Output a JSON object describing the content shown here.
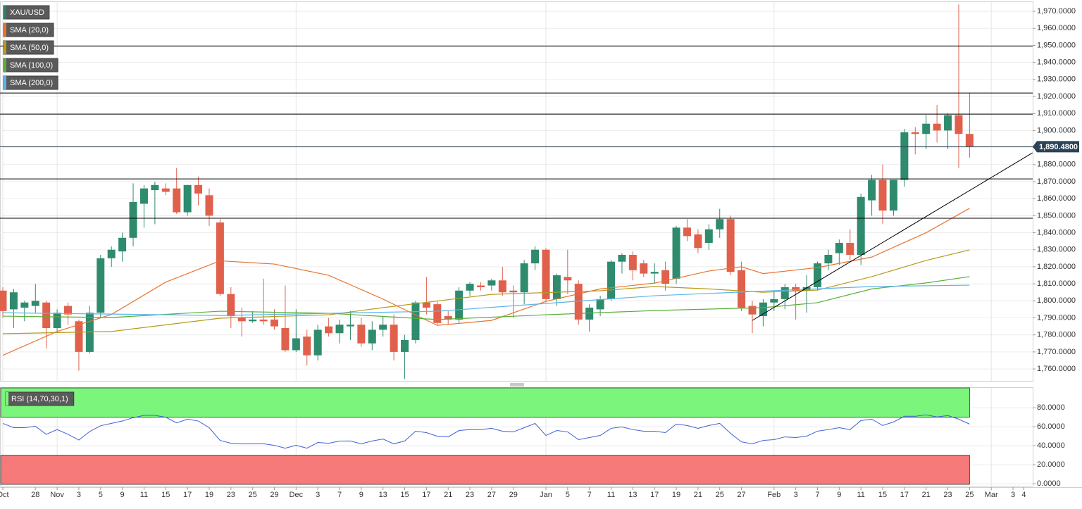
{
  "chart_data": [
    {
      "type": "candlestick",
      "legend": "top-left",
      "grid": true,
      "categories": [
        "Oct",
        null,
        null,
        "28",
        null,
        "Nov",
        null,
        "3",
        null,
        "5",
        null,
        "9",
        null,
        "11",
        null,
        "15",
        null,
        "17",
        null,
        "19",
        null,
        "23",
        null,
        "25",
        null,
        "29",
        null,
        "Dec",
        null,
        "3",
        null,
        "7",
        null,
        "9",
        null,
        "13",
        null,
        "15",
        null,
        "17",
        null,
        "21",
        null,
        "23",
        null,
        "27",
        null,
        "29",
        null,
        null,
        "Jan",
        null,
        "5",
        null,
        "7",
        null,
        "11",
        null,
        "13",
        null,
        "17",
        null,
        "19",
        null,
        "21",
        null,
        "25",
        null,
        "27",
        null,
        null,
        "Feb",
        null,
        "3",
        null,
        "7",
        null,
        "9",
        null,
        "11",
        null,
        "15",
        null,
        "17",
        null,
        "21",
        null,
        "23",
        null,
        "25",
        null,
        "Mar",
        null,
        "3",
        "4"
      ],
      "series": [
        {
          "name": "XAU/USD",
          "color": "#2f7e67",
          "up_color": "#2e8b6e",
          "down_color": "#e0604c",
          "open": [
            1806,
            1795,
            1796,
            1797,
            1799,
            1784,
            1797,
            1788,
            1770,
            1793,
            1825,
            1829,
            1837,
            1857,
            1865,
            1866,
            1866,
            1852,
            1868,
            1862,
            1846,
            1804,
            1790,
            1788,
            1789,
            1789,
            1784,
            1771,
            1779,
            1768,
            1785,
            1781,
            1785,
            1786,
            1775,
            1783,
            1786,
            1770,
            1777,
            1799,
            1798,
            1791,
            1789,
            1806,
            1809,
            1809,
            1812,
            1806,
            1805,
            1822,
            1830,
            1801,
            1814,
            1810,
            1789,
            1795,
            1801,
            1823,
            1827,
            1822,
            1816,
            1818,
            1813,
            1843,
            1839,
            1834,
            1842,
            1848,
            1818,
            1797,
            1791,
            1799,
            1801,
            1808,
            1806,
            1808,
            1822,
            1828,
            1834,
            1827,
            1859,
            1871,
            1853,
            1871,
            1899,
            1898,
            1904,
            1900,
            1909,
            1898,
            null,
            null,
            null,
            null,
            null
          ],
          "high": [
            1808,
            1807,
            1800,
            1810,
            1800,
            1795,
            1799,
            1789,
            1797,
            1827,
            1832,
            1840,
            1869,
            1868,
            1870,
            1869,
            1878,
            1868,
            1873,
            1866,
            1848,
            1808,
            1796,
            1794,
            1813,
            1795,
            1809,
            1795,
            1783,
            1786,
            1790,
            1789,
            1794,
            1790,
            1788,
            1791,
            1792,
            1780,
            1800,
            1814,
            1800,
            1794,
            1808,
            1811,
            1811,
            1813,
            1820,
            1809,
            1824,
            1832,
            1831,
            1816,
            1830,
            1812,
            1798,
            1803,
            1824,
            1828,
            1829,
            1824,
            1822,
            1823,
            1844,
            1848,
            1842,
            1845,
            1854,
            1850,
            1823,
            1800,
            1801,
            1806,
            1810,
            1810,
            1815,
            1823,
            1830,
            1836,
            1842,
            1863,
            1874,
            1880,
            1871,
            1901,
            1902,
            1909,
            1915,
            1910,
            1974,
            1922,
            null,
            null,
            null,
            null,
            null
          ],
          "low": [
            1790,
            1784,
            1788,
            1793,
            1772,
            1782,
            1786,
            1759,
            1769,
            1790,
            1820,
            1823,
            1832,
            1843,
            1845,
            1862,
            1851,
            1850,
            1856,
            1844,
            1803,
            1784,
            1779,
            1787,
            1786,
            1783,
            1770,
            1770,
            1762,
            1765,
            1779,
            1775,
            1777,
            1773,
            1771,
            1779,
            1765,
            1754,
            1775,
            1792,
            1786,
            1786,
            1787,
            1803,
            1806,
            1806,
            1803,
            1790,
            1798,
            1818,
            1799,
            1797,
            1804,
            1786,
            1782,
            1791,
            1800,
            1816,
            1812,
            1814,
            1810,
            1806,
            1810,
            1835,
            1828,
            1830,
            1837,
            1815,
            1794,
            1781,
            1785,
            1794,
            1795,
            1789,
            1793,
            1806,
            1818,
            1821,
            1824,
            1821,
            1850,
            1845,
            1850,
            1867,
            1886,
            1889,
            1893,
            1889,
            1878,
            1884,
            null,
            null,
            null,
            null,
            null
          ],
          "close": [
            1794,
            1805,
            1799,
            1800,
            1784,
            1793,
            1792,
            1770,
            1793,
            1825,
            1830,
            1837,
            1858,
            1866,
            1868,
            1864,
            1852,
            1868,
            1863,
            1850,
            1804,
            1791,
            1788,
            1789,
            1788,
            1785,
            1771,
            1778,
            1768,
            1783,
            1781,
            1786,
            1786,
            1775,
            1783,
            1786,
            1770,
            1777,
            1799,
            1796,
            1787,
            1789,
            1806,
            1810,
            1808,
            1812,
            1805,
            1805,
            1822,
            1830,
            1801,
            1815,
            1812,
            1789,
            1796,
            1801,
            1823,
            1827,
            1818,
            1816,
            1817,
            1810,
            1843,
            1838,
            1831,
            1842,
            1848,
            1817,
            1796,
            1792,
            1799,
            1801,
            1808,
            1806,
            1808,
            1822,
            1827,
            1834,
            1827,
            1861,
            1871,
            1853,
            1871,
            1899,
            1898,
            1904,
            1900,
            1909,
            1898,
            1890.48,
            null,
            null,
            null,
            null,
            null
          ]
        }
      ],
      "overlays": [
        {
          "name": "SMA (20,0)",
          "color": "#e8742f",
          "x": [
            0,
            5,
            10,
            15,
            20,
            25,
            30,
            35,
            40,
            45,
            50,
            55,
            60,
            65,
            68,
            70,
            75,
            80,
            85,
            89
          ],
          "values": [
            1768,
            1782,
            1792,
            1811,
            1823.5,
            1821.6,
            1815,
            1801,
            1785.6,
            1788.5,
            1799.7,
            1807,
            1810.4,
            1817.5,
            1820,
            1816,
            1819.5,
            1825.7,
            1840,
            1854.3
          ]
        },
        {
          "name": "SMA (50,0)",
          "color": "#b59a1c",
          "x": [
            0,
            10,
            20,
            30,
            35,
            45,
            55,
            60,
            65,
            70,
            75,
            80,
            85,
            89
          ],
          "values": [
            1780.7,
            1782,
            1789.8,
            1791.8,
            1796,
            1803.8,
            1805.9,
            1808.4,
            1807,
            1805,
            1806.3,
            1814.2,
            1823.7,
            1829.9
          ]
        },
        {
          "name": "SMA (100,0)",
          "color": "#5aaf3a",
          "x": [
            0,
            10,
            20,
            30,
            40,
            50,
            60,
            70,
            75,
            80,
            85,
            89
          ],
          "values": [
            1791,
            1790.2,
            1793.9,
            1792.7,
            1789,
            1791.8,
            1794.3,
            1796,
            1798.9,
            1807,
            1810.5,
            1814.2
          ]
        },
        {
          "name": "SMA (200,0)",
          "color": "#5bb4e8",
          "x": [
            0,
            20,
            40,
            60,
            80,
            89
          ],
          "values": [
            1793,
            1791.4,
            1793.9,
            1803,
            1808.4,
            1809.2
          ]
        }
      ],
      "hlines": {
        "color": "#000000",
        "values": [
          1949.6,
          1922,
          1909.6,
          1871.6,
          1848.5
        ]
      },
      "trendline": {
        "color": "#000000",
        "x": [
          69,
          94.8
        ],
        "values": [
          1788.5,
          1886.9
        ]
      },
      "last_price": {
        "value": 1890.48,
        "label": "1,890.4800",
        "color": "#2b4257"
      },
      "ylim": [
        1753,
        1975.4
      ],
      "yticks": [
        {
          "value": 1760,
          "label": "1,760.0000"
        },
        {
          "value": 1770,
          "label": "1,770.0000"
        },
        {
          "value": 1780,
          "label": "1,780.0000"
        },
        {
          "value": 1790,
          "label": "1,790.0000"
        },
        {
          "value": 1800,
          "label": "1,800.0000"
        },
        {
          "value": 1810,
          "label": "1,810.0000"
        },
        {
          "value": 1820,
          "label": "1,820.0000"
        },
        {
          "value": 1830,
          "label": "1,830.0000"
        },
        {
          "value": 1840,
          "label": "1,840.0000"
        },
        {
          "value": 1850,
          "label": "1,850.0000"
        },
        {
          "value": 1860,
          "label": "1,860.0000"
        },
        {
          "value": 1870,
          "label": "1,870.0000"
        },
        {
          "value": 1880,
          "label": "1,880.0000"
        },
        {
          "value": 1890,
          "label": "1,890.0000"
        },
        {
          "value": 1900,
          "label": "1,900.0000"
        },
        {
          "value": 1910,
          "label": "1,910.0000"
        },
        {
          "value": 1920,
          "label": "1,920.0000"
        },
        {
          "value": 1930,
          "label": "1,930.0000"
        },
        {
          "value": 1940,
          "label": "1,940.0000"
        },
        {
          "value": 1950,
          "label": "1,950.0000"
        },
        {
          "value": 1960,
          "label": "1,960.0000"
        },
        {
          "value": 1970,
          "label": "1,970.0000"
        }
      ]
    },
    {
      "type": "line",
      "title": "RSI (14,70,30,1)",
      "color": "#3f5fd8",
      "values": [
        63.5,
        59,
        59,
        60.5,
        52,
        57,
        52,
        46,
        55,
        61,
        63.5,
        66,
        69.5,
        72,
        72,
        70,
        64,
        68,
        66,
        59,
        45.6,
        42.6,
        41.9,
        42,
        42,
        40.4,
        37.4,
        40.4,
        37.4,
        43.4,
        42.6,
        44.9,
        45,
        42,
        45,
        47,
        42,
        45,
        55.3,
        53.8,
        50,
        49.3,
        56,
        57,
        57,
        58.3,
        55.3,
        54.6,
        59,
        63.5,
        50.8,
        56,
        54.6,
        46.4,
        48.6,
        50.8,
        58.3,
        59.8,
        57,
        55.3,
        55.3,
        53.8,
        62.8,
        61.3,
        58.3,
        61.3,
        63.5,
        53,
        44,
        42,
        45.6,
        46.4,
        49.3,
        48.6,
        50,
        55.3,
        57,
        59,
        57,
        66.5,
        68,
        61.3,
        65,
        71,
        71,
        72.5,
        70.3,
        71.8,
        68,
        62.8,
        null,
        null,
        null,
        null,
        null
      ],
      "upper": 70,
      "lower": 30,
      "upper_color": "#7cf57c",
      "lower_color": "#f77a7a",
      "ylim": [
        -2.2,
        100.9
      ],
      "yticks": [
        {
          "value": 0,
          "label": "0.0000"
        },
        {
          "value": 20,
          "label": "20.0000"
        },
        {
          "value": 40,
          "label": "40.0000"
        },
        {
          "value": 60,
          "label": "60.0000"
        },
        {
          "value": 80,
          "label": "80.0000"
        }
      ]
    }
  ]
}
